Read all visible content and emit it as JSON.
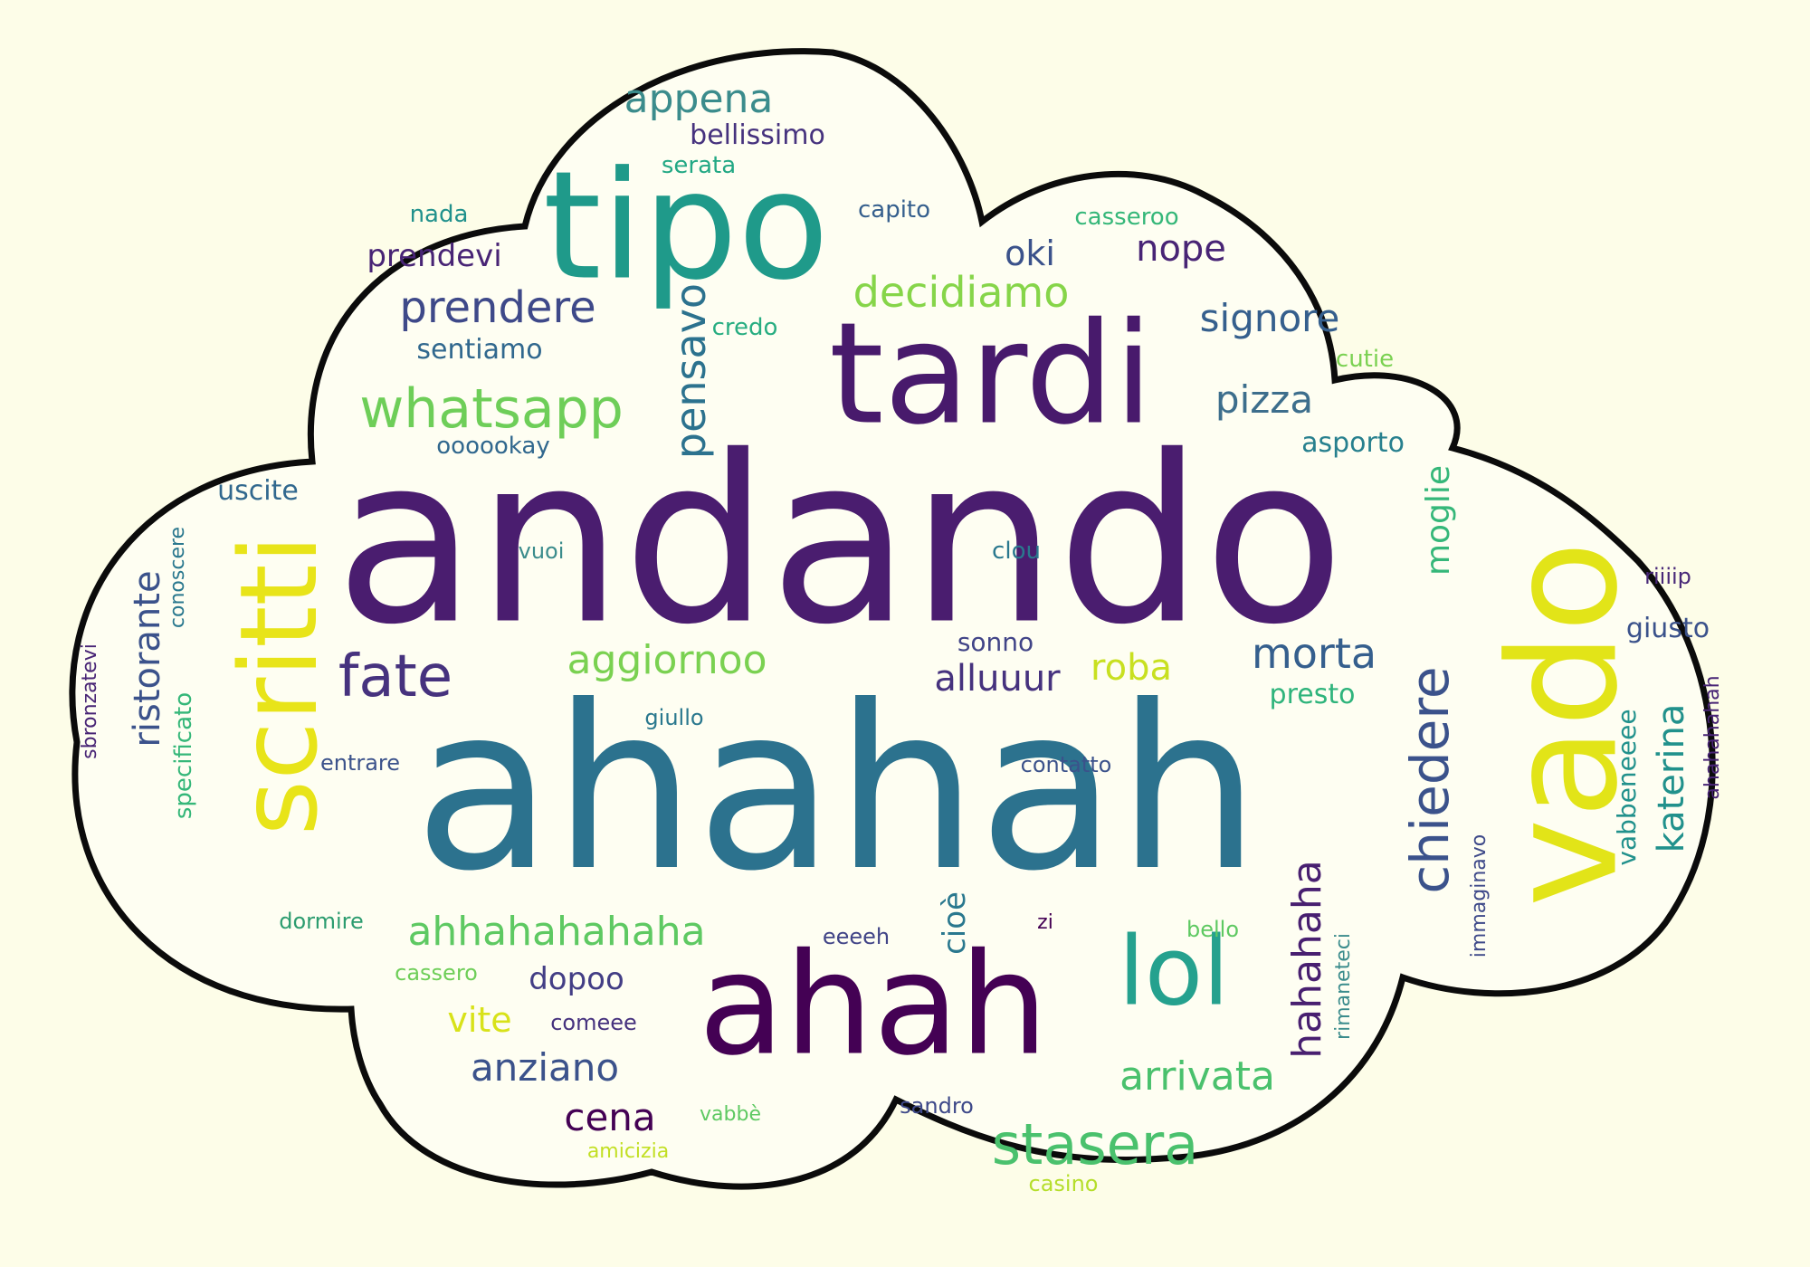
{
  "palette": {
    "background": "#fdfde8",
    "cloud_fill": "#fefef2",
    "cloud_outline": "#0b0b0b",
    "dark_purple": "#440154",
    "purple": "#482878",
    "indigo": "#3e4989",
    "blue": "#31688e",
    "teal_blue": "#26828e",
    "teal": "#1f9e89",
    "green_teal": "#35b779",
    "green": "#6ece58",
    "lime": "#b5de2b",
    "yellow": "#e3e418"
  },
  "words": [
    {
      "text": "andando",
      "color": "#4a1d6f"
    },
    {
      "text": "ahahah",
      "color": "#2c728e"
    },
    {
      "text": "tipo",
      "color": "#1f9a8a"
    },
    {
      "text": "tardi",
      "color": "#481a6c"
    },
    {
      "text": "ahah",
      "color": "#440154"
    },
    {
      "text": "vado",
      "color": "#e2e418"
    },
    {
      "text": "scritti",
      "color": "#e8e419"
    },
    {
      "text": "lol",
      "color": "#25a18e"
    },
    {
      "text": "whatsapp",
      "color": "#6ece58"
    },
    {
      "text": "stasera",
      "color": "#4ac16d"
    },
    {
      "text": "chiedere",
      "color": "#3b528b"
    },
    {
      "text": "hahahaha",
      "color": "#481f70"
    },
    {
      "text": "ahhahahahaha",
      "color": "#5ec962"
    },
    {
      "text": "pensavo",
      "color": "#2c728e"
    },
    {
      "text": "fate",
      "color": "#46327e"
    },
    {
      "text": "aggiornoo",
      "color": "#7ad151"
    },
    {
      "text": "prendere",
      "color": "#3e4989"
    },
    {
      "text": "decidiamo",
      "color": "#86d549"
    },
    {
      "text": "appena",
      "color": "#3b8c8c"
    },
    {
      "text": "ristorante",
      "color": "#3b528b"
    },
    {
      "text": "katerina",
      "color": "#21918c"
    },
    {
      "text": "arrivata",
      "color": "#4ac16d"
    },
    {
      "text": "anziano",
      "color": "#3b528b"
    },
    {
      "text": "morta",
      "color": "#355f8d"
    },
    {
      "text": "signore",
      "color": "#355f8d"
    },
    {
      "text": "pizza",
      "color": "#3d6e8c"
    },
    {
      "text": "cena",
      "color": "#440154"
    },
    {
      "text": "moglie",
      "color": "#35b779"
    },
    {
      "text": "roba",
      "color": "#c8e020"
    },
    {
      "text": "alluuur",
      "color": "#46327e"
    },
    {
      "text": "nope",
      "color": "#482475"
    },
    {
      "text": "oki",
      "color": "#3b528b"
    },
    {
      "text": "vite",
      "color": "#d8e219"
    },
    {
      "text": "dopoo",
      "color": "#433e85"
    },
    {
      "text": "cioè",
      "color": "#2a788e"
    },
    {
      "text": "bellissimo",
      "color": "#46327e"
    },
    {
      "text": "prendevi",
      "color": "#482475"
    },
    {
      "text": "sentiamo",
      "color": "#31688e"
    },
    {
      "text": "asporto",
      "color": "#27808e"
    },
    {
      "text": "presto",
      "color": "#2fb47c"
    },
    {
      "text": "uscite",
      "color": "#31688e"
    },
    {
      "text": "vabbeneeee",
      "color": "#21918c"
    },
    {
      "text": "giusto",
      "color": "#3b528b"
    },
    {
      "text": "sonno",
      "color": "#414487"
    },
    {
      "text": "oooookay",
      "color": "#31688e"
    },
    {
      "text": "serata",
      "color": "#22a884"
    },
    {
      "text": "nada",
      "color": "#21918c"
    },
    {
      "text": "capito",
      "color": "#355f8d"
    },
    {
      "text": "casseroo",
      "color": "#35b779"
    },
    {
      "text": "credo",
      "color": "#27ad81"
    },
    {
      "text": "cutie",
      "color": "#7ad151"
    },
    {
      "text": "vuoi",
      "color": "#3b8c8c"
    },
    {
      "text": "clou",
      "color": "#2a788e"
    },
    {
      "text": "riiiip",
      "color": "#482878"
    },
    {
      "text": "conoscere",
      "color": "#2a788e"
    },
    {
      "text": "sbronzatevi",
      "color": "#482475"
    },
    {
      "text": "specificato",
      "color": "#35b779"
    },
    {
      "text": "giullo",
      "color": "#2a788e"
    },
    {
      "text": "entrare",
      "color": "#3b528b"
    },
    {
      "text": "contatto",
      "color": "#3b528b"
    },
    {
      "text": "ahahahahah",
      "color": "#482475"
    },
    {
      "text": "immaginavo",
      "color": "#3e4989"
    },
    {
      "text": "dormire",
      "color": "#2c9c6f"
    },
    {
      "text": "zi",
      "color": "#440154"
    },
    {
      "text": "eeeeh",
      "color": "#414487"
    },
    {
      "text": "bello",
      "color": "#5ec962"
    },
    {
      "text": "rimaneteci",
      "color": "#3b8c8c"
    },
    {
      "text": "cassero",
      "color": "#6ece58"
    },
    {
      "text": "comeee",
      "color": "#46327e"
    },
    {
      "text": "sandro",
      "color": "#3e4989"
    },
    {
      "text": "vabbè",
      "color": "#5ec962"
    },
    {
      "text": "amicizia",
      "color": "#c2df23"
    },
    {
      "text": "casino",
      "color": "#b5de2b"
    }
  ]
}
